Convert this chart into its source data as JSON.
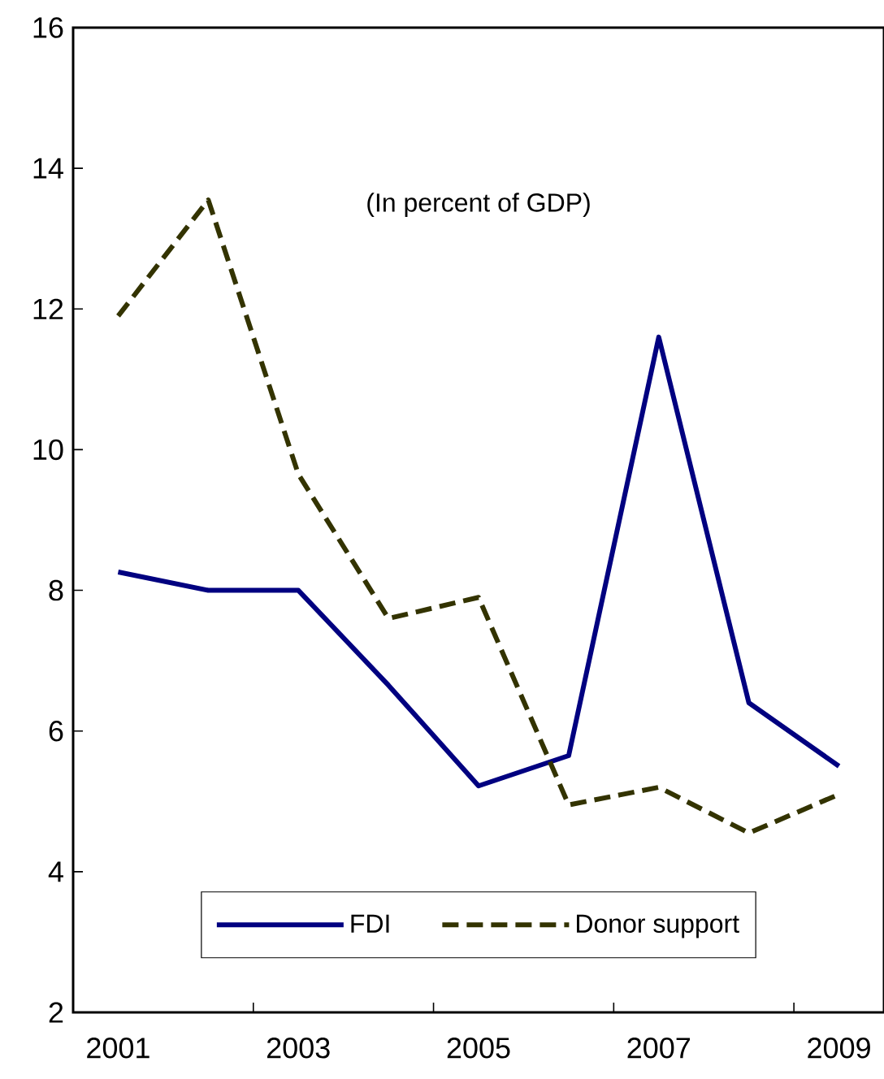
{
  "chart_data": {
    "type": "line",
    "categories": [
      "2001",
      null,
      "2003",
      null,
      "2005",
      null,
      "2007",
      null,
      "2009"
    ],
    "series": [
      {
        "name": "FDI",
        "color": "#000080",
        "line_style": "solid",
        "values": [
          8.26,
          8.0,
          8.0,
          6.65,
          5.22,
          5.65,
          11.6,
          6.4,
          5.5
        ]
      },
      {
        "name": "Donor support",
        "color": "#333300",
        "line_style": "dashed",
        "values": [
          11.9,
          13.55,
          9.65,
          7.6,
          7.9,
          4.95,
          5.2,
          4.55,
          5.1
        ]
      }
    ],
    "ylim": [
      2,
      16
    ],
    "yticks": [
      2,
      4,
      6,
      8,
      10,
      12,
      14,
      16
    ],
    "legend": "bottom",
    "annotations": [
      "(In percent of GDP)"
    ]
  }
}
